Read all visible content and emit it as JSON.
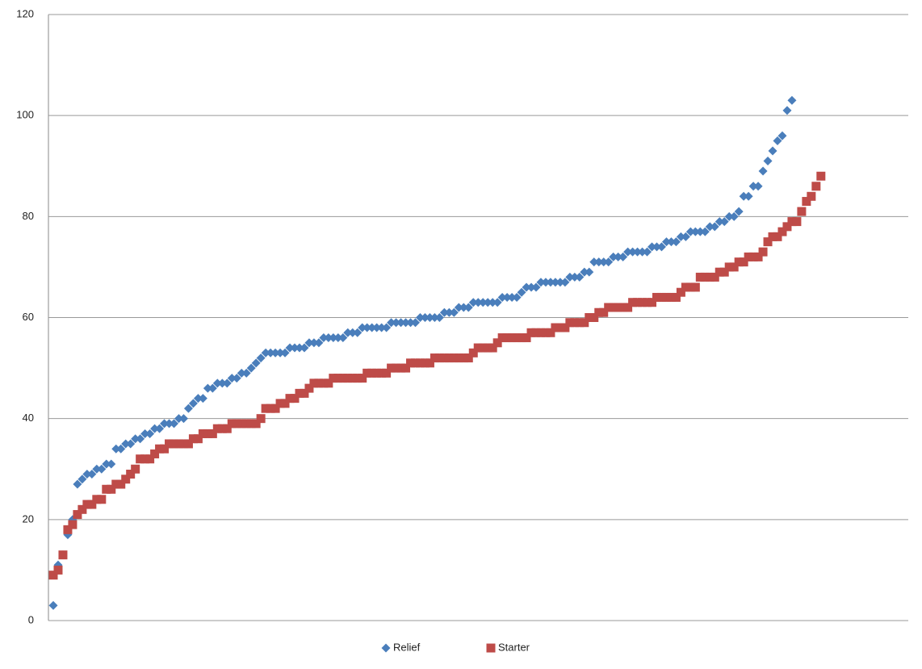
{
  "chart_data": {
    "type": "scatter",
    "ylim": [
      0,
      120
    ],
    "yticks": [
      0,
      20,
      40,
      60,
      80,
      100,
      120
    ],
    "grid": true,
    "legend": "bottom",
    "series": [
      {
        "name": "Relief",
        "color": "#4a7ebb",
        "marker": "diamond",
        "values": [
          3,
          11,
          13,
          17,
          20,
          27,
          28,
          29,
          29,
          30,
          30,
          31,
          31,
          34,
          34,
          35,
          35,
          36,
          36,
          37,
          37,
          38,
          38,
          39,
          39,
          39,
          40,
          40,
          42,
          43,
          44,
          44,
          46,
          46,
          47,
          47,
          47,
          48,
          48,
          49,
          49,
          50,
          51,
          52,
          53,
          53,
          53,
          53,
          53,
          54,
          54,
          54,
          54,
          55,
          55,
          55,
          56,
          56,
          56,
          56,
          56,
          57,
          57,
          57,
          58,
          58,
          58,
          58,
          58,
          58,
          59,
          59,
          59,
          59,
          59,
          59,
          60,
          60,
          60,
          60,
          60,
          61,
          61,
          61,
          62,
          62,
          62,
          63,
          63,
          63,
          63,
          63,
          63,
          64,
          64,
          64,
          64,
          65,
          66,
          66,
          66,
          67,
          67,
          67,
          67,
          67,
          67,
          68,
          68,
          68,
          69,
          69,
          71,
          71,
          71,
          71,
          72,
          72,
          72,
          73,
          73,
          73,
          73,
          73,
          74,
          74,
          74,
          75,
          75,
          75,
          76,
          76,
          77,
          77,
          77,
          77,
          78,
          78,
          79,
          79,
          80,
          80,
          81,
          84,
          84,
          86,
          86,
          89,
          91,
          93,
          95,
          96,
          101,
          103
        ]
      },
      {
        "name": "Starter",
        "color": "#be4b48",
        "marker": "square",
        "values": [
          9,
          10,
          13,
          18,
          19,
          21,
          22,
          23,
          23,
          24,
          24,
          26,
          26,
          27,
          27,
          28,
          29,
          30,
          32,
          32,
          32,
          33,
          34,
          34,
          35,
          35,
          35,
          35,
          35,
          36,
          36,
          37,
          37,
          37,
          38,
          38,
          38,
          39,
          39,
          39,
          39,
          39,
          39,
          40,
          42,
          42,
          42,
          43,
          43,
          44,
          44,
          45,
          45,
          46,
          47,
          47,
          47,
          47,
          48,
          48,
          48,
          48,
          48,
          48,
          48,
          49,
          49,
          49,
          49,
          49,
          50,
          50,
          50,
          50,
          51,
          51,
          51,
          51,
          51,
          52,
          52,
          52,
          52,
          52,
          52,
          52,
          52,
          53,
          54,
          54,
          54,
          54,
          55,
          56,
          56,
          56,
          56,
          56,
          56,
          57,
          57,
          57,
          57,
          57,
          58,
          58,
          58,
          59,
          59,
          59,
          59,
          60,
          60,
          61,
          61,
          62,
          62,
          62,
          62,
          62,
          63,
          63,
          63,
          63,
          63,
          64,
          64,
          64,
          64,
          64,
          65,
          66,
          66,
          66,
          68,
          68,
          68,
          68,
          69,
          69,
          70,
          70,
          71,
          71,
          72,
          72,
          72,
          73,
          75,
          76,
          76,
          77,
          78,
          79,
          79,
          81,
          83,
          84,
          86,
          88
        ]
      }
    ]
  }
}
